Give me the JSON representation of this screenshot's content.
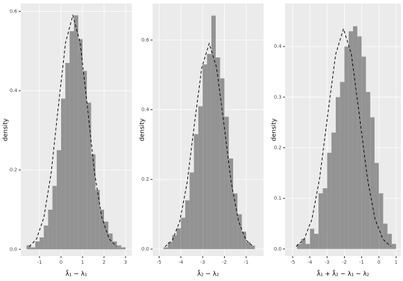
{
  "chart_data": [
    {
      "type": "histogram",
      "x_label": "λ̂₁ − λ₁",
      "y_label": "density",
      "color": "#8a8a8a",
      "curve_color": "#000000",
      "bins": [
        -1.6,
        -1.4,
        -1.2,
        -1.0,
        -0.8,
        -0.6,
        -0.4,
        -0.2,
        0.0,
        0.2,
        0.4,
        0.6,
        0.8,
        1.0,
        1.2,
        1.4,
        1.6,
        1.8,
        2.0,
        2.2,
        2.4,
        2.6,
        2.8,
        3.0
      ],
      "values": [
        0.01,
        0.005,
        0.02,
        0.03,
        0.06,
        0.1,
        0.16,
        0.25,
        0.38,
        0.47,
        0.55,
        0.59,
        0.53,
        0.45,
        0.37,
        0.24,
        0.15,
        0.1,
        0.07,
        0.04,
        0.02,
        0.01,
        0.005
      ],
      "curve": {
        "x": [
          -1.48,
          -1.14,
          -0.8,
          -0.46,
          -0.13,
          0.21,
          0.55,
          0.89,
          1.23,
          1.56,
          1.9,
          2.24,
          2.58
        ],
        "y": [
          0.007,
          0.026,
          0.08,
          0.192,
          0.358,
          0.521,
          0.59,
          0.521,
          0.358,
          0.192,
          0.08,
          0.026,
          0.007
        ]
      },
      "xlim": [
        -1.87,
        3.29
      ],
      "ylim": [
        -0.017,
        0.62
      ],
      "xticks": [
        -1,
        0,
        1,
        2,
        3
      ],
      "yticks": [
        {
          "value": 0,
          "label": "0.0"
        },
        0.2,
        0.4,
        0.6
      ],
      "grid": true
    },
    {
      "type": "histogram",
      "x_label": "λ̂₂ − λ₂",
      "y_label": "density",
      "color": "#8a8a8a",
      "curve_color": "#000000",
      "bins": [
        -4.8,
        -4.6,
        -4.4,
        -4.2,
        -4.0,
        -3.8,
        -3.6,
        -3.4,
        -3.2,
        -3.0,
        -2.8,
        -2.6,
        -2.4,
        -2.2,
        -2.0,
        -1.8,
        -1.6,
        -1.4,
        -1.2,
        -1.0,
        -0.8,
        -0.6
      ],
      "values": [
        0.005,
        0.02,
        0.04,
        0.06,
        0.09,
        0.14,
        0.22,
        0.33,
        0.41,
        0.53,
        0.56,
        0.67,
        0.55,
        0.49,
        0.38,
        0.26,
        0.16,
        0.1,
        0.05,
        0.02,
        0.01
      ],
      "curve": {
        "x": [
          -4.73,
          -4.39,
          -4.05,
          -3.71,
          -3.38,
          -3.04,
          -2.7,
          -2.36,
          -2.02,
          -1.69,
          -1.35,
          -1.01,
          -0.67
        ],
        "y": [
          0.007,
          0.026,
          0.08,
          0.192,
          0.358,
          0.521,
          0.59,
          0.521,
          0.358,
          0.192,
          0.08,
          0.026,
          0.007
        ]
      },
      "xlim": [
        -5.3,
        -0.2
      ],
      "ylim": [
        -0.02,
        0.705
      ],
      "xticks": [
        -5,
        -4,
        -3,
        -2,
        -1
      ],
      "yticks": [
        {
          "value": 0,
          "label": "0.0"
        },
        0.2,
        0.4,
        0.6
      ],
      "grid": true
    },
    {
      "type": "histogram",
      "x_label": "λ̂₁ + λ̂₂ − λ₁ − λ₂",
      "y_label": "density",
      "color": "#8a8a8a",
      "curve_color": "#000000",
      "bins": [
        -4.75,
        -4.5,
        -4.25,
        -4.0,
        -3.75,
        -3.5,
        -3.25,
        -3.0,
        -2.75,
        -2.5,
        -2.25,
        -2.0,
        -1.75,
        -1.5,
        -1.25,
        -1.0,
        -0.75,
        -0.5,
        -0.25,
        0.0,
        0.25,
        0.5,
        0.75,
        1.0
      ],
      "values": [
        0.01,
        0.02,
        0.01,
        0.04,
        0.03,
        0.11,
        0.12,
        0.19,
        0.23,
        0.3,
        0.33,
        0.4,
        0.43,
        0.44,
        0.42,
        0.38,
        0.31,
        0.26,
        0.17,
        0.11,
        0.05,
        0.03,
        0.01
      ],
      "curve": {
        "x": [
          -4.8,
          -4.34,
          -3.88,
          -3.43,
          -2.97,
          -2.51,
          -2.05,
          -1.59,
          -1.13,
          -0.67,
          -0.22,
          0.24,
          0.7
        ],
        "y": [
          0.005,
          0.019,
          0.059,
          0.141,
          0.264,
          0.384,
          0.435,
          0.384,
          0.264,
          0.141,
          0.059,
          0.019,
          0.005
        ]
      },
      "xlim": [
        -5.44,
        1.28
      ],
      "ylim": [
        -0.014,
        0.485
      ],
      "xticks": [
        -5,
        -4,
        -3,
        -2,
        -1,
        0,
        1
      ],
      "yticks": [
        {
          "value": 0,
          "label": "0.0"
        },
        0.1,
        0.2,
        0.3,
        0.4
      ],
      "grid": true
    }
  ]
}
